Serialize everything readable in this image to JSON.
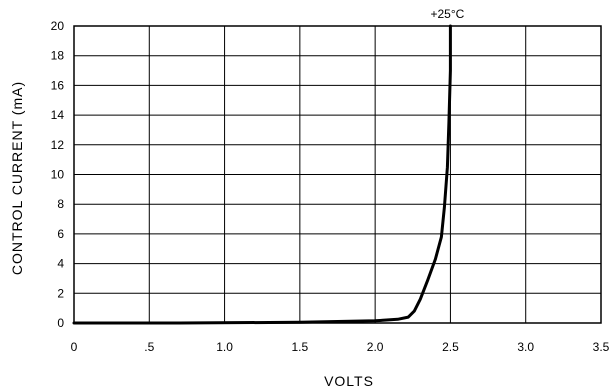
{
  "chart_data": {
    "type": "line",
    "title": "",
    "xlabel": "VOLTS",
    "ylabel": "CONTROL CURRENT (mA)",
    "xlim": [
      0,
      3.5
    ],
    "ylim": [
      0,
      20
    ],
    "grid": true,
    "x_ticks": [
      0,
      0.5,
      1.0,
      1.5,
      2.0,
      2.5,
      3.0,
      3.5
    ],
    "x_tick_labels": [
      "0",
      ".5",
      "1.0",
      "1.5",
      "2.0",
      "2.5",
      "3.0",
      "3.5"
    ],
    "y_ticks": [
      0,
      2,
      4,
      6,
      8,
      10,
      12,
      14,
      16,
      18,
      20
    ],
    "y_tick_labels": [
      "0",
      "2",
      "4",
      "6",
      "8",
      "10",
      "12",
      "14",
      "16",
      "18",
      "20"
    ],
    "annotations": [
      {
        "text": "+25°C",
        "x": 2.5,
        "y": 20
      }
    ],
    "series": [
      {
        "x": [
          0,
          0.7,
          1.5,
          2.0,
          2.15,
          2.22,
          2.26,
          2.3,
          2.35,
          2.4,
          2.44,
          2.46,
          2.48,
          2.49,
          2.5,
          2.5
        ],
        "y": [
          0,
          0,
          0.05,
          0.15,
          0.25,
          0.4,
          0.8,
          1.6,
          2.9,
          4.3,
          5.8,
          7.8,
          10.5,
          13.5,
          17,
          20
        ]
      }
    ],
    "line_color": "#000000"
  }
}
